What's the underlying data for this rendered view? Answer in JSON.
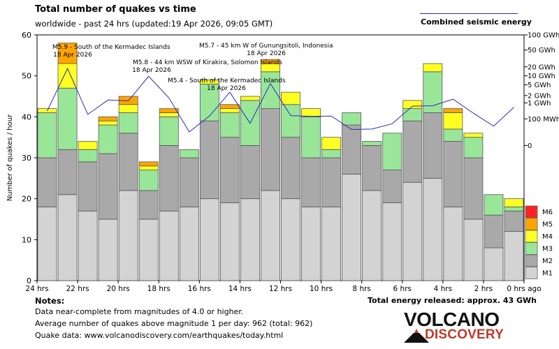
{
  "header": {
    "title": "Total number of quakes vs time",
    "subtitle": "worldwide - past 24 hrs (updated:19 Apr 2026, 09:05 GMT)",
    "legend_line_label": "Combined seismic energy"
  },
  "colors": {
    "M1": "#d3d3d3",
    "M2": "#a9a9a9",
    "M3": "#99e699",
    "M4": "#ffff22",
    "M5": "#ffa500",
    "M6": "#ff2222",
    "energy_line": "#2c2cb4"
  },
  "chart_data": {
    "type": "bar",
    "stacked": true,
    "title": "Total number of quakes vs time",
    "ylabel": "Number of quakes / hour",
    "ylim": [
      0,
      60
    ],
    "y_ticks": [
      0,
      10,
      20,
      30,
      40,
      50,
      60
    ],
    "x_tick_labels": [
      "24 hrs",
      "22 hrs",
      "20 hrs",
      "18 hrs",
      "16 hrs",
      "14 hrs",
      "12 hrs",
      "10 hrs",
      "8 hrs",
      "6 hrs",
      "4 hrs",
      "2 hrs",
      "0 hrs ago"
    ],
    "series": [
      {
        "name": "M1",
        "values": [
          18,
          21,
          17,
          15,
          22,
          15,
          17,
          18,
          20,
          19,
          20,
          22,
          20,
          18,
          18,
          26,
          22,
          19,
          24,
          25,
          18,
          15,
          8,
          12
        ]
      },
      {
        "name": "M2",
        "values": [
          12,
          11,
          12,
          16,
          14,
          7,
          16,
          12,
          19,
          16,
          13,
          20,
          15,
          12,
          12,
          12,
          11,
          8,
          15,
          16,
          16,
          15,
          8,
          5
        ]
      },
      {
        "name": "M3",
        "values": [
          11,
          15,
          3,
          7,
          5,
          5,
          7,
          2,
          9,
          6,
          11,
          9,
          8,
          10,
          2,
          3,
          1,
          9,
          3,
          10,
          3,
          5,
          5,
          1
        ]
      },
      {
        "name": "M4",
        "values": [
          1,
          6,
          2,
          1,
          2,
          1,
          1,
          0,
          1,
          1,
          1,
          2,
          3,
          2,
          3,
          0,
          0,
          0,
          2,
          2,
          4,
          1,
          0,
          2
        ]
      },
      {
        "name": "M5",
        "values": [
          0,
          5,
          0,
          1,
          2,
          1,
          1,
          0,
          0,
          1,
          0,
          1,
          0,
          0,
          0,
          0,
          0,
          0,
          0,
          0,
          1,
          0,
          0,
          0
        ]
      },
      {
        "name": "M6",
        "values": [
          0,
          0,
          0,
          0,
          0,
          0,
          0,
          0,
          0,
          0,
          0,
          0,
          0,
          0,
          0,
          0,
          0,
          0,
          0,
          0,
          0,
          0,
          0,
          0
        ]
      }
    ],
    "energy_axis": {
      "labels": [
        "100 GWh",
        "50 GWh",
        "20 GWh",
        "10 GWh",
        "5 GWh",
        "2 GWh",
        "1 GWh",
        "100 MWh",
        "0"
      ],
      "y_equiv": [
        60,
        56.3,
        52.2,
        50,
        47.8,
        45.2,
        43.4,
        39.5,
        33
      ]
    },
    "energy_line_y_equiv": [
      41.4,
      51.8,
      40.6,
      44.1,
      43.9,
      49.9,
      44.6,
      36.3,
      40.2,
      46.0,
      38.4,
      48.1,
      40.3,
      40.1,
      40.2,
      36.9,
      37.0,
      38.3,
      42.6,
      42.7,
      44.3,
      40.9,
      37.7,
      42.3
    ],
    "annotations": [
      {
        "line1": "M5.9 - South of the Kermadec Islands",
        "line2": "18 Apr 2026"
      },
      {
        "line1": "M5.8 - 44 km WSW of Kirakira, Solomon Islands",
        "line2": "18 Apr 2026"
      },
      {
        "line1": "M5.7 - 45 km W of Gunungsitoli, Indonesia",
        "line2": "18 Apr 2026"
      },
      {
        "line1": "M5.4 - South of the Kermadec Islands",
        "line2": "18 Apr 2026"
      }
    ],
    "legend": [
      "M6",
      "M5",
      "M4",
      "M3",
      "M2",
      "M1"
    ]
  },
  "footer": {
    "notes_title": "Notes:",
    "notes": [
      "Data near-complete from magnitudes of 4.0 or higher.",
      "Average number of quakes above magnitude 1 per day: 962 (total: 962)",
      "Quake data: www.volcanodiscovery.com/earthquakes/today.html"
    ],
    "total_energy": "Total energy released: approx. 43 GWh",
    "logo_line1": "VOLCANO",
    "logo_line2": "DISCOVERY"
  }
}
